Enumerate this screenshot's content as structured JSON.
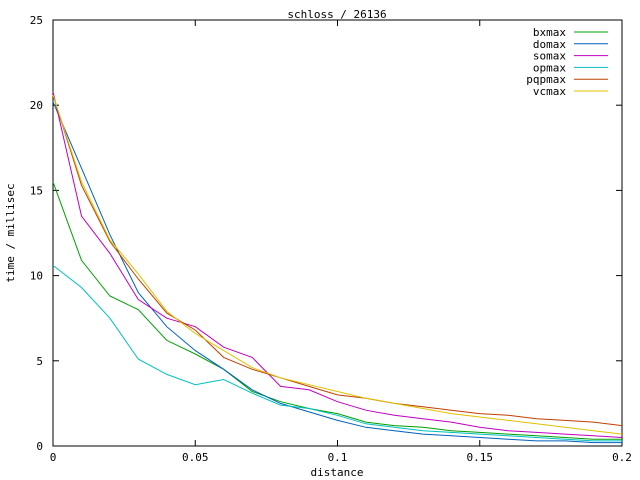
{
  "chart_data": {
    "type": "line",
    "title": "schloss / 26136",
    "xlabel": "distance",
    "ylabel": "time / millisec",
    "xlim": [
      0,
      0.2
    ],
    "ylim": [
      0,
      25
    ],
    "x_ticks": [
      0,
      0.05,
      0.1,
      0.15,
      0.2
    ],
    "x_tick_labels": [
      "0",
      "0.05",
      "0.1",
      "0.15",
      "0.2"
    ],
    "y_ticks": [
      0,
      5,
      10,
      15,
      20,
      25
    ],
    "y_tick_labels": [
      "0",
      "5",
      "10",
      "15",
      "20",
      "25"
    ],
    "grid": false,
    "legend_position": "top-right",
    "x": [
      0,
      0.01,
      0.02,
      0.03,
      0.04,
      0.05,
      0.06,
      0.07,
      0.08,
      0.09,
      0.1,
      0.11,
      0.12,
      0.13,
      0.14,
      0.15,
      0.16,
      0.17,
      0.18,
      0.19,
      0.2
    ],
    "series": [
      {
        "name": "bxmax",
        "color": "#00a000",
        "values": [
          15.5,
          10.9,
          8.8,
          8.0,
          6.2,
          5.4,
          4.5,
          3.2,
          2.6,
          2.2,
          1.9,
          1.4,
          1.2,
          1.1,
          0.9,
          0.8,
          0.7,
          0.6,
          0.5,
          0.4,
          0.4
        ]
      },
      {
        "name": "domax",
        "color": "#0060c0",
        "values": [
          20.2,
          16.3,
          12.4,
          9.0,
          7.0,
          5.6,
          4.5,
          3.3,
          2.5,
          2.0,
          1.5,
          1.1,
          0.9,
          0.7,
          0.6,
          0.5,
          0.4,
          0.3,
          0.3,
          0.2,
          0.2
        ]
      },
      {
        "name": "somax",
        "color": "#c000c0",
        "values": [
          20.8,
          13.5,
          11.3,
          8.6,
          7.5,
          7.0,
          5.8,
          5.2,
          3.5,
          3.3,
          2.6,
          2.1,
          1.8,
          1.6,
          1.4,
          1.1,
          0.9,
          0.8,
          0.7,
          0.6,
          0.5
        ]
      },
      {
        "name": "opmax",
        "color": "#00c0c0",
        "values": [
          10.6,
          9.3,
          7.5,
          5.1,
          4.2,
          3.6,
          3.9,
          3.1,
          2.4,
          2.2,
          1.8,
          1.3,
          1.1,
          0.9,
          0.8,
          0.7,
          0.6,
          0.5,
          0.4,
          0.3,
          0.3
        ]
      },
      {
        "name": "pqpmax",
        "color": "#c04000",
        "values": [
          20.6,
          15.3,
          12.0,
          9.8,
          7.8,
          6.8,
          5.2,
          4.5,
          4.0,
          3.5,
          3.0,
          2.8,
          2.5,
          2.3,
          2.1,
          1.9,
          1.8,
          1.6,
          1.5,
          1.4,
          1.2
        ]
      },
      {
        "name": "vcmax",
        "color": "#e0c000",
        "values": [
          20.6,
          15.5,
          12.1,
          10.1,
          7.9,
          6.6,
          5.6,
          4.6,
          4.0,
          3.6,
          3.2,
          2.8,
          2.5,
          2.2,
          1.9,
          1.7,
          1.5,
          1.3,
          1.1,
          0.9,
          0.7
        ]
      }
    ]
  }
}
